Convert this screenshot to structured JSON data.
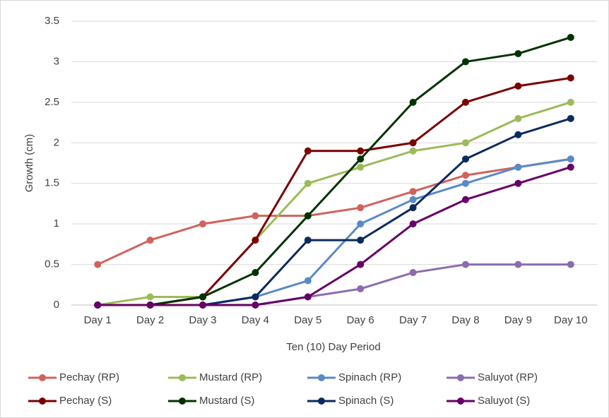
{
  "chart_data": {
    "type": "line",
    "y_label": "Growth (cm)",
    "x_label": "Ten (10) Day Period",
    "categories": [
      "Day 1",
      "Day 2",
      "Day 3",
      "Day 4",
      "Day 5",
      "Day 6",
      "Day 7",
      "Day 8",
      "Day 9",
      "Day 10"
    ],
    "series": [
      {
        "name": "Pechay (RP)",
        "color": "#d0625c",
        "values": [
          0.5,
          0.8,
          1.0,
          1.1,
          1.1,
          1.2,
          1.4,
          1.6,
          1.7,
          1.8
        ]
      },
      {
        "name": "Mustard (RP)",
        "color": "#9bbb59",
        "values": [
          0,
          0.1,
          0.1,
          0.8,
          1.5,
          1.7,
          1.9,
          2.0,
          2.3,
          2.5
        ]
      },
      {
        "name": "Spinach (RP)",
        "color": "#5a8ac6",
        "values": [
          0,
          0,
          0,
          0.1,
          0.3,
          1.0,
          1.3,
          1.5,
          1.7,
          1.8
        ]
      },
      {
        "name": "Saluyot (RP)",
        "color": "#8c6cb0",
        "values": [
          0,
          0,
          0,
          0,
          0.1,
          0.2,
          0.4,
          0.5,
          0.5,
          0.5
        ]
      },
      {
        "name": "Pechay (S)",
        "color": "#7b0000",
        "values": [
          0,
          0,
          0.1,
          0.8,
          1.9,
          1.9,
          2.0,
          2.5,
          2.7,
          2.8
        ]
      },
      {
        "name": "Mustard (S)",
        "color": "#003300",
        "values": [
          0,
          0,
          0.1,
          0.4,
          1.1,
          1.8,
          2.5,
          3.0,
          3.1,
          3.3
        ]
      },
      {
        "name": "Spinach (S)",
        "color": "#0b2a5e",
        "values": [
          0,
          0,
          0,
          0.1,
          0.8,
          0.8,
          1.2,
          1.8,
          2.1,
          2.3
        ]
      },
      {
        "name": "Saluyot (S)",
        "color": "#660066",
        "values": [
          0,
          0,
          0,
          0,
          0.1,
          0.5,
          1.0,
          1.3,
          1.5,
          1.7
        ]
      }
    ],
    "ylim": [
      0,
      3.5
    ],
    "yticks": [
      0,
      0.5,
      1,
      1.5,
      2,
      2.5,
      3,
      3.5
    ],
    "grid": true,
    "legend": "bottom"
  }
}
